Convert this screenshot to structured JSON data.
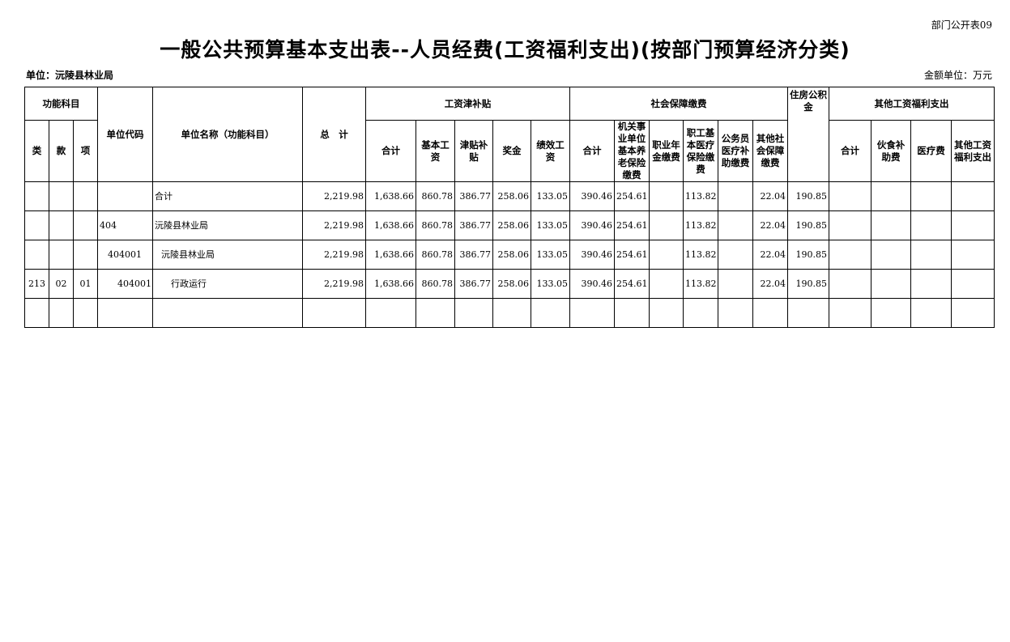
{
  "form_no": "部门公开表09",
  "title": "一般公共预算基本支出表--人员经费(工资福利支出)(按部门预算经济分类)",
  "unit": "单位：沅陵县林业局",
  "money_unit": "金额单位：万元",
  "headers": {
    "func": "功能科目",
    "lei": "类",
    "kuan": "款",
    "xiang": "项",
    "code": "单位代码",
    "name": "单位名称（功能科目）",
    "total": "总　计",
    "wage": "工资津补贴",
    "wage_total": "合计",
    "basic": "基本工资",
    "allowance": "津贴补贴",
    "bonus": "奖金",
    "performance": "绩效工资",
    "ss": "社会保障缴费",
    "ss_total": "合计",
    "pension": "机关事业单位基本养老保险缴费",
    "occupational": "职业年金缴费",
    "medical": "职工基本医疗保险缴费",
    "civil_medical": "公务员医疗补助缴费",
    "other_ss": "其他社会保障缴费",
    "housing": "住房公积金",
    "other": "其他工资福利支出",
    "other_total": "合计",
    "meal": "伙食补助费",
    "medical_fee": "医疗费",
    "other_welfare": "其他工资福利支出"
  },
  "rows": [
    {
      "lei": "",
      "kuan": "",
      "xiang": "",
      "code": "",
      "name": "合计",
      "total": "2,219.98",
      "wage_total": "1,638.66",
      "basic": "860.78",
      "allowance": "386.77",
      "bonus": "258.06",
      "performance": "133.05",
      "ss_total": "390.46",
      "pension": "254.61",
      "occupational": "",
      "medical": "113.82",
      "civil_medical": "",
      "other_ss": "22.04",
      "housing": "190.85",
      "other_total": "",
      "meal": "",
      "medical_fee": "",
      "other_welfare": ""
    },
    {
      "lei": "",
      "kuan": "",
      "xiang": "",
      "code": "404",
      "name": "沅陵县林业局",
      "total": "2,219.98",
      "wage_total": "1,638.66",
      "basic": "860.78",
      "allowance": "386.77",
      "bonus": "258.06",
      "performance": "133.05",
      "ss_total": "390.46",
      "pension": "254.61",
      "occupational": "",
      "medical": "113.82",
      "civil_medical": "",
      "other_ss": "22.04",
      "housing": "190.85",
      "other_total": "",
      "meal": "",
      "medical_fee": "",
      "other_welfare": ""
    },
    {
      "lei": "",
      "kuan": "",
      "xiang": "",
      "code": "404001",
      "name": "沅陵县林业局",
      "total": "2,219.98",
      "wage_total": "1,638.66",
      "basic": "860.78",
      "allowance": "386.77",
      "bonus": "258.06",
      "performance": "133.05",
      "ss_total": "390.46",
      "pension": "254.61",
      "occupational": "",
      "medical": "113.82",
      "civil_medical": "",
      "other_ss": "22.04",
      "housing": "190.85",
      "other_total": "",
      "meal": "",
      "medical_fee": "",
      "other_welfare": ""
    },
    {
      "lei": "213",
      "kuan": "02",
      "xiang": "01",
      "code": "404001",
      "name": "行政运行",
      "total": "2,219.98",
      "wage_total": "1,638.66",
      "basic": "860.78",
      "allowance": "386.77",
      "bonus": "258.06",
      "performance": "133.05",
      "ss_total": "390.46",
      "pension": "254.61",
      "occupational": "",
      "medical": "113.82",
      "civil_medical": "",
      "other_ss": "22.04",
      "housing": "190.85",
      "other_total": "",
      "meal": "",
      "medical_fee": "",
      "other_welfare": ""
    },
    {
      "lei": "",
      "kuan": "",
      "xiang": "",
      "code": "",
      "name": "",
      "total": "",
      "wage_total": "",
      "basic": "",
      "allowance": "",
      "bonus": "",
      "performance": "",
      "ss_total": "",
      "pension": "",
      "occupational": "",
      "medical": "",
      "civil_medical": "",
      "other_ss": "",
      "housing": "",
      "other_total": "",
      "meal": "",
      "medical_fee": "",
      "other_welfare": ""
    }
  ]
}
